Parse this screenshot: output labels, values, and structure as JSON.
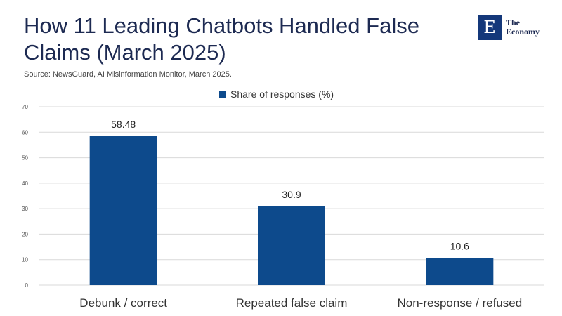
{
  "title": "How 11 Leading Chatbots Handled False Claims (March 2025)",
  "source": "Source:  NewsGuard, AI Misinformation Monitor, March 2025.",
  "logo": {
    "mark": "E",
    "line1": "The",
    "line2": "Economy"
  },
  "colors": {
    "bar": "#0d4a8c",
    "grid": "#d9d9d9",
    "title": "#1d2a52"
  },
  "chart_data": {
    "type": "bar",
    "categories": [
      "Debunk / correct",
      "Repeated false claim",
      "Non-response / refused"
    ],
    "series": [
      {
        "name": "Share of responses (%)",
        "values": [
          58.48,
          30.9,
          10.6
        ]
      }
    ],
    "data_labels": [
      "58.48",
      "30.9",
      "10.6"
    ],
    "ylim": [
      0,
      70
    ],
    "yticks": [
      0,
      10,
      20,
      30,
      40,
      50,
      60,
      70
    ],
    "grid": true,
    "legend": "top-center"
  }
}
